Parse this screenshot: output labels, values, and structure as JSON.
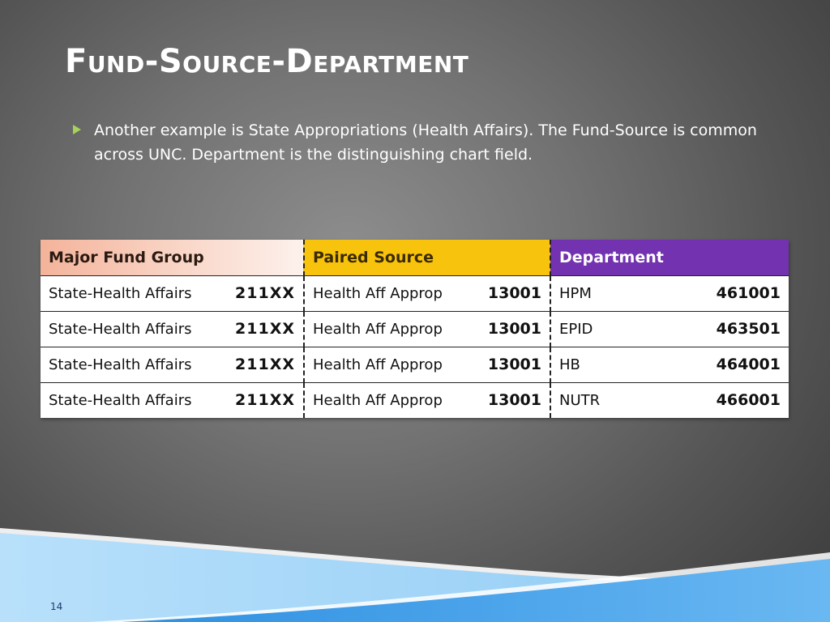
{
  "slide": {
    "title": "Fund-Source-Department",
    "bullet": "Another example is State Appropriations (Health Affairs).  The Fund-Source is common across UNC. Department is the distinguishing chart field.",
    "page_number": "14"
  },
  "table": {
    "headers": [
      "Major Fund Group",
      "Paired Source",
      "Department"
    ],
    "rows": [
      {
        "fund": "State-Health Affairs",
        "fund_code": "211XX",
        "source": "Health Aff Approp",
        "source_code": "13001",
        "dept": "HPM",
        "dept_code": "461001"
      },
      {
        "fund": "State-Health Affairs",
        "fund_code": "211XX",
        "source": "Health Aff Approp",
        "source_code": "13001",
        "dept": "EPID",
        "dept_code": "463501"
      },
      {
        "fund": "State-Health Affairs",
        "fund_code": "211XX",
        "source": "Health Aff Approp",
        "source_code": "13001",
        "dept": "HB",
        "dept_code": "464001"
      },
      {
        "fund": "State-Health Affairs",
        "fund_code": "211XX",
        "source": "Health Aff Approp",
        "source_code": "13001",
        "dept": "NUTR",
        "dept_code": "466001"
      }
    ]
  },
  "colors": {
    "header_fund": "#f4b39a",
    "header_source": "#f8c30c",
    "header_dept": "#7333b0",
    "bullet_marker": "#a6d15a",
    "wave_light": "#9fd3f7",
    "wave_dark": "#4aa3ea"
  },
  "icons": {
    "bullet": "triangle-bullet-icon"
  }
}
